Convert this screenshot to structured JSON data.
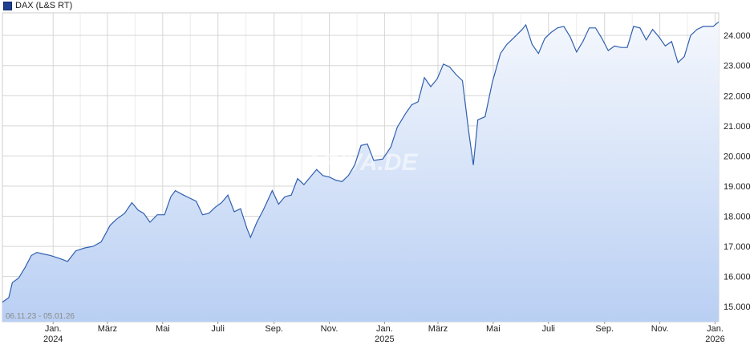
{
  "chart_data": {
    "type": "area",
    "title": "",
    "legend": "DAX (L&S RT)",
    "date_range_label": "06.11.23 - 05.01.26",
    "watermark": "ARIVA.DE",
    "colors": {
      "line": "#2f5fae",
      "fill_top": "#f4f7fd",
      "fill_bottom": "#b9cff3",
      "grid": "#d6d6d6"
    },
    "ylim": [
      14500,
      24750
    ],
    "y_ticks": [
      15000,
      16000,
      17000,
      18000,
      19000,
      20000,
      21000,
      22000,
      23000,
      24000
    ],
    "y_tick_labels": [
      "15.000",
      "16.000",
      "17.000",
      "18.000",
      "19.000",
      "20.000",
      "21.000",
      "22.000",
      "23.000",
      "24.000"
    ],
    "xlim": [
      "2023-11-06",
      "2026-01-05"
    ],
    "x_ticks": [
      {
        "date": "2024-01-01",
        "label": "Jan.",
        "year": "2024"
      },
      {
        "date": "2024-03-01",
        "label": "März",
        "year": ""
      },
      {
        "date": "2024-05-01",
        "label": "Mai",
        "year": ""
      },
      {
        "date": "2024-07-01",
        "label": "Juli",
        "year": ""
      },
      {
        "date": "2024-09-01",
        "label": "Sep.",
        "year": ""
      },
      {
        "date": "2024-11-01",
        "label": "Nov.",
        "year": ""
      },
      {
        "date": "2025-01-01",
        "label": "Jan.",
        "year": "2025"
      },
      {
        "date": "2025-03-01",
        "label": "März",
        "year": ""
      },
      {
        "date": "2025-05-01",
        "label": "Mai",
        "year": ""
      },
      {
        "date": "2025-07-01",
        "label": "Juli",
        "year": ""
      },
      {
        "date": "2025-09-01",
        "label": "Sep.",
        "year": ""
      },
      {
        "date": "2025-11-01",
        "label": "Nov.",
        "year": ""
      },
      {
        "date": "2026-01-01",
        "label": "Jan.",
        "year": "2026"
      }
    ],
    "series": [
      {
        "x": [
          "2023-11-06",
          "2023-11-13",
          "2023-11-17",
          "2023-11-24",
          "2023-12-01",
          "2023-12-08",
          "2023-12-14",
          "2023-12-21",
          "2023-12-29",
          "2024-01-08",
          "2024-01-17",
          "2024-01-26",
          "2024-02-05",
          "2024-02-14",
          "2024-02-23",
          "2024-03-04",
          "2024-03-11",
          "2024-03-20",
          "2024-03-28",
          "2024-04-04",
          "2024-04-10",
          "2024-04-17",
          "2024-04-25",
          "2024-05-03",
          "2024-05-10",
          "2024-05-15",
          "2024-05-24",
          "2024-05-31",
          "2024-06-07",
          "2024-06-14",
          "2024-06-21",
          "2024-06-28",
          "2024-07-05",
          "2024-07-12",
          "2024-07-19",
          "2024-07-26",
          "2024-08-02",
          "2024-08-06",
          "2024-08-13",
          "2024-08-20",
          "2024-08-30",
          "2024-09-06",
          "2024-09-13",
          "2024-09-20",
          "2024-09-27",
          "2024-10-04",
          "2024-10-11",
          "2024-10-18",
          "2024-10-25",
          "2024-11-01",
          "2024-11-08",
          "2024-11-15",
          "2024-11-22",
          "2024-11-29",
          "2024-12-06",
          "2024-12-13",
          "2024-12-20",
          "2024-12-30",
          "2025-01-08",
          "2025-01-15",
          "2025-01-24",
          "2025-01-31",
          "2025-02-07",
          "2025-02-14",
          "2025-02-21",
          "2025-02-28",
          "2025-03-07",
          "2025-03-14",
          "2025-03-21",
          "2025-03-28",
          "2025-04-04",
          "2025-04-09",
          "2025-04-14",
          "2025-04-22",
          "2025-04-30",
          "2025-05-09",
          "2025-05-16",
          "2025-05-23",
          "2025-06-02",
          "2025-06-06",
          "2025-06-13",
          "2025-06-20",
          "2025-06-27",
          "2025-07-04",
          "2025-07-11",
          "2025-07-18",
          "2025-07-25",
          "2025-08-01",
          "2025-08-08",
          "2025-08-15",
          "2025-08-22",
          "2025-08-29",
          "2025-09-05",
          "2025-09-12",
          "2025-09-19",
          "2025-09-26",
          "2025-10-03",
          "2025-10-10",
          "2025-10-17",
          "2025-10-24",
          "2025-10-31",
          "2025-11-07",
          "2025-11-14",
          "2025-11-21",
          "2025-11-28",
          "2025-12-05",
          "2025-12-12",
          "2025-12-19",
          "2025-12-30",
          "2026-01-05"
        ],
        "values": [
          15150,
          15300,
          15800,
          15950,
          16300,
          16700,
          16800,
          16750,
          16700,
          16600,
          16500,
          16850,
          16950,
          17000,
          17150,
          17700,
          17900,
          18100,
          18450,
          18200,
          18100,
          17800,
          18050,
          18050,
          18650,
          18850,
          18700,
          18600,
          18500,
          18050,
          18100,
          18300,
          18450,
          18700,
          18150,
          18250,
          17600,
          17300,
          17800,
          18200,
          18850,
          18400,
          18650,
          18700,
          19250,
          19050,
          19300,
          19550,
          19350,
          19300,
          19200,
          19150,
          19350,
          19700,
          20350,
          20400,
          19850,
          19900,
          20300,
          20950,
          21400,
          21700,
          21800,
          22600,
          22300,
          22550,
          23050,
          22950,
          22700,
          22500,
          20800,
          19700,
          21200,
          21300,
          22450,
          23400,
          23700,
          23900,
          24200,
          24350,
          23700,
          23400,
          23900,
          24100,
          24250,
          24300,
          23950,
          23450,
          23800,
          24250,
          24250,
          23900,
          23500,
          23650,
          23600,
          23600,
          24300,
          24250,
          23850,
          24200,
          23950,
          23650,
          23800,
          23100,
          23300,
          24000,
          24200,
          24300,
          24300,
          24450
        ]
      }
    ]
  }
}
